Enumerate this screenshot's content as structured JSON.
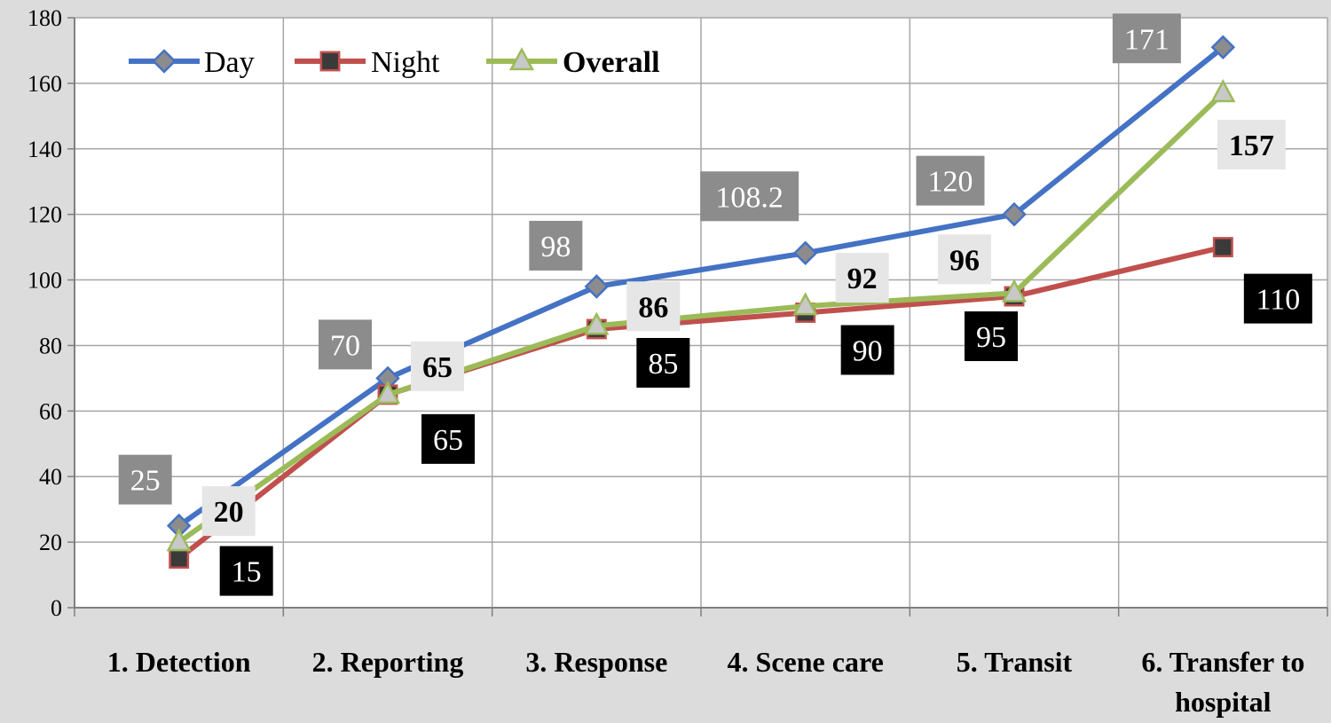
{
  "chart_data": {
    "type": "line",
    "categories": [
      [
        "1. Detection"
      ],
      [
        "2. Reporting"
      ],
      [
        "3. Response"
      ],
      [
        "4. Scene care"
      ],
      [
        "5. Transit"
      ],
      [
        "6. Transfer to",
        "hospital"
      ]
    ],
    "ylim": [
      0,
      180
    ],
    "ytick_step": 20,
    "grid": true,
    "legend_position": "top-left",
    "series": [
      {
        "name": "Day",
        "values": [
          25,
          70,
          98,
          108.2,
          120,
          171
        ],
        "labels": [
          "25",
          "70",
          "98",
          "108.2",
          "120",
          "171"
        ],
        "line_color": "#4472c4",
        "marker": "diamond",
        "marker_fill": "#8c8c8c",
        "label_bg": "#8c8c8c",
        "label_color": "#ffffff",
        "label_bold": false
      },
      {
        "name": "Night",
        "values": [
          15,
          65,
          85,
          90,
          95,
          110
        ],
        "labels": [
          "15",
          "65",
          "85",
          "90",
          "95",
          "110"
        ],
        "line_color": "#c0504d",
        "marker": "square",
        "marker_fill": "#3a3a3a",
        "label_bg": "#000000",
        "label_color": "#ffffff",
        "label_bold": false
      },
      {
        "name": "Overall",
        "values": [
          20,
          65,
          86,
          92,
          96,
          157
        ],
        "labels": [
          "20",
          "65",
          "86",
          "92",
          "96",
          "157"
        ],
        "line_color": "#9bbb59",
        "marker": "triangle",
        "marker_fill": "#c8c8c8",
        "label_bg": "#e6e6e6",
        "label_color": "#000000",
        "label_bold": true
      }
    ]
  }
}
